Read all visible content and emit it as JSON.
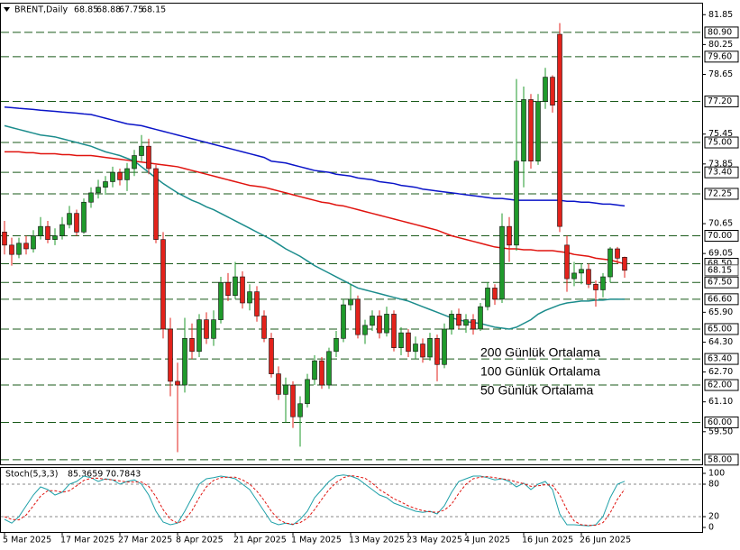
{
  "chart_data": [
    {
      "type": "candlestick",
      "title": "BRENT,Daily",
      "up_color": "#1f9a2b",
      "down_color": "#e3221b",
      "categories": [
        "5 Mar 2025",
        null,
        null,
        null,
        null,
        null,
        null,
        null,
        "17 Mar 2025",
        null,
        null,
        null,
        null,
        null,
        null,
        null,
        "27 Mar 2025",
        null,
        null,
        null,
        null,
        null,
        null,
        null,
        "8 Apr 2025",
        null,
        null,
        null,
        null,
        null,
        null,
        null,
        "21 Apr 2025",
        null,
        null,
        null,
        null,
        null,
        null,
        null,
        "1 May 2025",
        null,
        null,
        null,
        null,
        null,
        null,
        null,
        "13 May 2025",
        null,
        null,
        null,
        null,
        null,
        null,
        null,
        "23 May 2025",
        null,
        null,
        null,
        null,
        null,
        null,
        null,
        "4 Jun 2025",
        null,
        null,
        null,
        null,
        null,
        null,
        null,
        "16 Jun 2025",
        null,
        null,
        null,
        null,
        null,
        null,
        null,
        "26 Jun 2025",
        null,
        null,
        null,
        null,
        null,
        null
      ],
      "ohlc": [
        [
          70.2,
          70.8,
          69.0,
          69.5
        ],
        [
          69.5,
          69.9,
          68.4,
          69.0
        ],
        [
          69.0,
          69.9,
          68.8,
          69.6
        ],
        [
          69.6,
          70.0,
          69.0,
          69.3
        ],
        [
          69.3,
          70.3,
          69.1,
          70.0
        ],
        [
          70.0,
          71.0,
          69.8,
          70.5
        ],
        [
          70.5,
          70.8,
          69.6,
          69.8
        ],
        [
          69.8,
          70.4,
          69.5,
          70.0
        ],
        [
          70.0,
          71.0,
          69.8,
          70.6
        ],
        [
          70.6,
          71.6,
          70.4,
          71.2
        ],
        [
          71.2,
          71.4,
          70.0,
          70.2
        ],
        [
          70.2,
          72.0,
          70.1,
          71.8
        ],
        [
          71.8,
          72.6,
          71.5,
          72.3
        ],
        [
          72.3,
          73.0,
          72.0,
          72.6
        ],
        [
          72.6,
          73.2,
          72.2,
          72.9
        ],
        [
          72.9,
          73.7,
          72.6,
          73.4
        ],
        [
          73.4,
          73.6,
          72.7,
          73.0
        ],
        [
          73.0,
          73.9,
          72.4,
          73.6
        ],
        [
          73.6,
          74.6,
          73.2,
          74.3
        ],
        [
          74.3,
          75.4,
          74.0,
          74.8
        ],
        [
          74.8,
          75.2,
          73.3,
          73.6
        ],
        [
          73.6,
          73.8,
          69.6,
          69.8
        ],
        [
          69.8,
          70.2,
          64.5,
          65.0
        ],
        [
          65.0,
          65.6,
          61.4,
          62.2
        ],
        [
          62.2,
          63.2,
          58.4,
          62.0
        ],
        [
          62.0,
          65.6,
          61.6,
          64.5
        ],
        [
          64.5,
          65.3,
          63.4,
          63.8
        ],
        [
          63.8,
          65.8,
          63.5,
          65.5
        ],
        [
          65.5,
          65.9,
          64.2,
          64.5
        ],
        [
          64.5,
          66.0,
          64.1,
          65.5
        ],
        [
          65.5,
          67.8,
          65.3,
          67.5
        ],
        [
          67.5,
          68.0,
          66.5,
          66.8
        ],
        [
          66.8,
          68.6,
          66.6,
          67.8
        ],
        [
          67.8,
          68.1,
          66.1,
          66.4
        ],
        [
          66.4,
          67.4,
          66.0,
          67.0
        ],
        [
          67.0,
          67.3,
          65.4,
          65.7
        ],
        [
          65.7,
          66.0,
          64.3,
          64.5
        ],
        [
          64.5,
          64.8,
          62.4,
          62.6
        ],
        [
          62.6,
          63.0,
          61.2,
          61.5
        ],
        [
          61.5,
          62.4,
          60.0,
          62.0
        ],
        [
          62.0,
          62.2,
          59.7,
          60.3
        ],
        [
          60.3,
          61.4,
          58.7,
          61.0
        ],
        [
          61.0,
          62.6,
          60.8,
          62.3
        ],
        [
          62.3,
          63.6,
          62.0,
          63.3
        ],
        [
          63.3,
          63.5,
          61.8,
          62.0
        ],
        [
          62.0,
          64.0,
          61.8,
          63.8
        ],
        [
          63.8,
          64.9,
          63.5,
          64.5
        ],
        [
          64.5,
          66.6,
          64.3,
          66.3
        ],
        [
          66.3,
          67.4,
          66.0,
          66.6
        ],
        [
          66.6,
          66.8,
          64.5,
          64.7
        ],
        [
          64.7,
          65.5,
          64.2,
          65.2
        ],
        [
          65.2,
          66.0,
          64.9,
          65.7
        ],
        [
          65.7,
          66.0,
          64.5,
          64.8
        ],
        [
          64.8,
          66.2,
          64.6,
          65.8
        ],
        [
          65.8,
          66.0,
          63.8,
          64.0
        ],
        [
          64.0,
          65.1,
          63.6,
          64.8
        ],
        [
          64.8,
          65.0,
          63.5,
          63.8
        ],
        [
          63.8,
          64.6,
          63.4,
          64.2
        ],
        [
          64.2,
          64.5,
          63.2,
          63.5
        ],
        [
          63.5,
          64.8,
          63.3,
          64.5
        ],
        [
          64.5,
          64.7,
          62.2,
          63.1
        ],
        [
          63.1,
          65.3,
          62.9,
          65.0
        ],
        [
          65.0,
          66.0,
          64.7,
          65.8
        ],
        [
          65.8,
          66.1,
          65.0,
          65.2
        ],
        [
          65.2,
          65.8,
          64.8,
          65.5
        ],
        [
          65.5,
          65.8,
          64.7,
          65.0
        ],
        [
          65.0,
          66.4,
          64.9,
          66.2
        ],
        [
          66.2,
          67.5,
          66.0,
          67.2
        ],
        [
          67.2,
          67.4,
          66.3,
          66.6
        ],
        [
          66.6,
          71.2,
          66.4,
          70.5
        ],
        [
          70.5,
          71.0,
          68.6,
          69.5
        ],
        [
          69.5,
          78.4,
          69.2,
          74.0
        ],
        [
          74.0,
          78.0,
          72.6,
          77.3
        ],
        [
          77.3,
          77.6,
          73.6,
          74.0
        ],
        [
          74.0,
          77.6,
          73.8,
          77.2
        ],
        [
          77.2,
          79.0,
          76.8,
          78.5
        ],
        [
          78.5,
          78.6,
          76.6,
          77.0
        ],
        [
          80.8,
          81.4,
          70.2,
          70.5
        ],
        [
          69.5,
          70.0,
          67.0,
          67.7
        ],
        [
          67.7,
          68.6,
          67.3,
          68.0
        ],
        [
          68.0,
          68.5,
          67.4,
          68.2
        ],
        [
          68.2,
          68.5,
          67.2,
          67.4
        ],
        [
          67.4,
          67.6,
          66.2,
          67.1
        ],
        [
          67.1,
          68.0,
          66.7,
          67.8
        ],
        [
          67.8,
          69.4,
          67.5,
          69.3
        ],
        [
          69.3,
          69.4,
          68.5,
          68.8
        ],
        [
          68.85,
          68.88,
          67.75,
          68.15
        ]
      ],
      "series": [
        {
          "name": "200 Günlük Ortalama",
          "color": "#0a14c8",
          "values": [
            76.9,
            76.87,
            76.83,
            76.8,
            76.77,
            76.73,
            76.7,
            76.67,
            76.63,
            76.6,
            76.57,
            76.53,
            76.5,
            76.4,
            76.3,
            76.2,
            76.1,
            76.0,
            75.95,
            75.9,
            75.8,
            75.7,
            75.6,
            75.5,
            75.4,
            75.3,
            75.2,
            75.1,
            75.0,
            74.9,
            74.8,
            74.7,
            74.6,
            74.5,
            74.4,
            74.3,
            74.2,
            74.0,
            73.95,
            73.9,
            73.8,
            73.7,
            73.6,
            73.5,
            73.45,
            73.4,
            73.3,
            73.25,
            73.2,
            73.1,
            73.05,
            73.0,
            72.9,
            72.85,
            72.8,
            72.7,
            72.65,
            72.6,
            72.5,
            72.45,
            72.4,
            72.35,
            72.3,
            72.25,
            72.2,
            72.15,
            72.1,
            72.05,
            72.0,
            72.0,
            71.95,
            71.9,
            71.9,
            71.9,
            71.9,
            71.9,
            71.9,
            71.9,
            71.85,
            71.85,
            71.8,
            71.8,
            71.75,
            71.7,
            71.7,
            71.65,
            71.6
          ]
        },
        {
          "name": "100 Günlük Ortalama",
          "color": "#e0140f",
          "values": [
            74.5,
            74.5,
            74.5,
            74.45,
            74.45,
            74.4,
            74.4,
            74.4,
            74.35,
            74.35,
            74.3,
            74.3,
            74.3,
            74.25,
            74.2,
            74.15,
            74.1,
            74.05,
            74.0,
            73.95,
            73.9,
            73.85,
            73.8,
            73.75,
            73.7,
            73.6,
            73.5,
            73.4,
            73.3,
            73.2,
            73.1,
            73.0,
            72.9,
            72.8,
            72.7,
            72.65,
            72.6,
            72.5,
            72.4,
            72.3,
            72.2,
            72.1,
            72.0,
            71.9,
            71.8,
            71.75,
            71.65,
            71.6,
            71.5,
            71.4,
            71.3,
            71.2,
            71.1,
            71.0,
            70.9,
            70.8,
            70.7,
            70.6,
            70.5,
            70.4,
            70.3,
            70.15,
            70.0,
            69.9,
            69.8,
            69.7,
            69.6,
            69.5,
            69.4,
            69.35,
            69.3,
            69.3,
            69.25,
            69.25,
            69.2,
            69.2,
            69.2,
            69.15,
            69.1,
            69.0,
            68.95,
            68.9,
            68.8,
            68.75,
            68.7,
            68.6,
            68.5
          ]
        },
        {
          "name": "50 Günlük Ortalama",
          "color": "#1b8c8c",
          "values": [
            75.9,
            75.8,
            75.7,
            75.6,
            75.5,
            75.4,
            75.35,
            75.3,
            75.2,
            75.1,
            75.0,
            74.9,
            74.8,
            74.65,
            74.5,
            74.4,
            74.3,
            74.15,
            74.0,
            73.7,
            73.4,
            73.1,
            72.8,
            72.55,
            72.3,
            72.1,
            71.9,
            71.75,
            71.55,
            71.4,
            71.2,
            71.0,
            70.8,
            70.6,
            70.4,
            70.2,
            70.0,
            69.8,
            69.55,
            69.3,
            69.1,
            68.9,
            68.65,
            68.4,
            68.2,
            68.0,
            67.8,
            67.6,
            67.4,
            67.2,
            67.1,
            67.0,
            66.9,
            66.8,
            66.7,
            66.6,
            66.5,
            66.35,
            66.2,
            66.05,
            65.9,
            65.75,
            65.6,
            65.5,
            65.4,
            65.35,
            65.3,
            65.2,
            65.1,
            65.05,
            65.0,
            65.1,
            65.3,
            65.5,
            65.8,
            66.0,
            66.15,
            66.3,
            66.4,
            66.45,
            66.5,
            66.5,
            66.55,
            66.55,
            66.6,
            66.6,
            66.6
          ]
        }
      ],
      "ylim": [
        57.75,
        82.25
      ],
      "yticks": [
        {
          "value": 81.85,
          "label": "81.85"
        },
        {
          "value": 80.25,
          "label": "80.25"
        },
        {
          "value": 78.65,
          "label": "78.65"
        },
        {
          "value": 75.45,
          "label": "75.45"
        },
        {
          "value": 73.85,
          "label": "73.85"
        },
        {
          "value": 70.65,
          "label": "70.65"
        },
        {
          "value": 69.05,
          "label": "69.05"
        },
        {
          "value": 65.9,
          "label": "65.90"
        },
        {
          "value": 64.3,
          "label": "64.30"
        },
        {
          "value": 62.7,
          "label": "62.70"
        },
        {
          "value": 61.1,
          "label": "61.10"
        },
        {
          "value": 59.5,
          "label": "59.50"
        }
      ],
      "levels": [
        {
          "value": 80.9,
          "label": "80.90"
        },
        {
          "value": 79.6,
          "label": "79.60"
        },
        {
          "value": 77.2,
          "label": "77.20"
        },
        {
          "value": 75,
          "label": "75.00"
        },
        {
          "value": 73.4,
          "label": "73.40"
        },
        {
          "value": 72.25,
          "label": "72.25"
        },
        {
          "value": 70,
          "label": "70.00"
        },
        {
          "value": 68.5,
          "label": "68.50"
        },
        {
          "value": 67.5,
          "label": "67.50"
        },
        {
          "value": 66.6,
          "label": "66.60"
        },
        {
          "value": 65,
          "label": "65.00"
        },
        {
          "value": 63.4,
          "label": "63.40"
        },
        {
          "value": 62,
          "label": "62.00"
        },
        {
          "value": 60,
          "label": "60.00"
        },
        {
          "value": 58,
          "label": "58.00"
        }
      ]
    },
    {
      "type": "line",
      "title": "Stoch(5,3,3)",
      "series": [
        {
          "color": "#1ea0a8",
          "values": [
            15,
            8,
            20,
            40,
            60,
            75,
            70,
            60,
            65,
            80,
            85,
            95,
            92,
            85,
            90,
            88,
            80,
            85,
            88,
            80,
            60,
            30,
            10,
            5,
            8,
            30,
            55,
            80,
            90,
            92,
            95,
            93,
            90,
            80,
            70,
            50,
            30,
            10,
            5,
            8,
            5,
            15,
            30,
            55,
            70,
            85,
            95,
            97,
            95,
            90,
            80,
            70,
            60,
            55,
            45,
            40,
            35,
            30,
            28,
            30,
            25,
            40,
            65,
            85,
            90,
            95,
            95,
            92,
            88,
            90,
            85,
            75,
            82,
            70,
            80,
            85,
            70,
            25,
            5,
            5,
            4,
            3,
            5,
            20,
            55,
            80,
            85.3659
          ]
        },
        {
          "color": "#e0140f",
          "dashed": true,
          "values": [
            20,
            15,
            14,
            23,
            40,
            58,
            68,
            68,
            65,
            68,
            77,
            87,
            91,
            91,
            89,
            88,
            86,
            84,
            84,
            84,
            76,
            57,
            33,
            15,
            8,
            14,
            31,
            55,
            75,
            87,
            92,
            93,
            93,
            88,
            80,
            67,
            50,
            30,
            15,
            8,
            6,
            9,
            17,
            33,
            52,
            70,
            83,
            92,
            96,
            94,
            91,
            82,
            70,
            62,
            53,
            47,
            40,
            35,
            31,
            29,
            28,
            32,
            43,
            63,
            80,
            90,
            93,
            94,
            92,
            90,
            88,
            84,
            81,
            76,
            77,
            79,
            78,
            60,
            33,
            12,
            5,
            4,
            4,
            9,
            27,
            52,
            70.7843
          ]
        }
      ],
      "ylim": [
        0,
        100
      ],
      "yticks": [
        100,
        80,
        20,
        0
      ],
      "levels": [
        80,
        20
      ]
    }
  ]
}
